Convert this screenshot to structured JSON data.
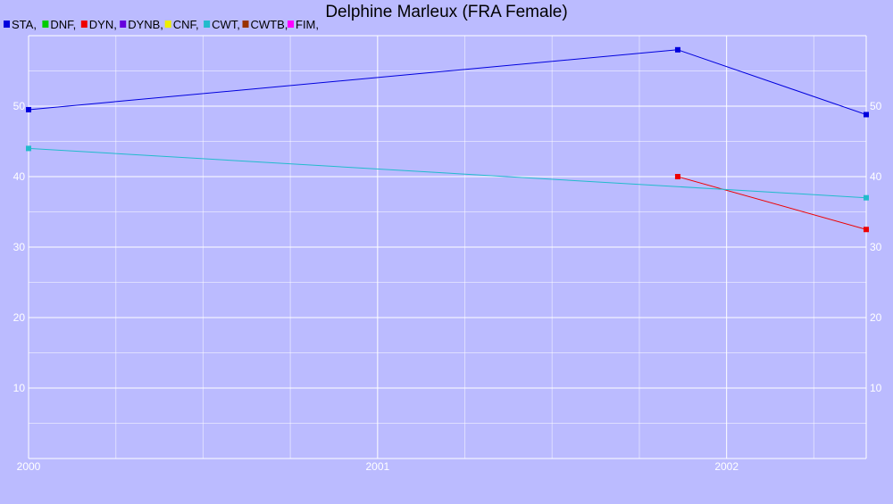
{
  "chart_data": {
    "type": "line",
    "title": "Delphine Marleux (FRA Female)",
    "xlabel": "",
    "ylabel": "",
    "xlim": [
      2000.0,
      2002.4
    ],
    "ylim": [
      0,
      60
    ],
    "x_ticks": [
      "2000",
      "2001",
      "2002"
    ],
    "y_ticks": [
      "10",
      "20",
      "30",
      "40",
      "50"
    ],
    "grid": true,
    "legend_position": "top-left",
    "legend": [
      {
        "label": "STA,",
        "color": "#0000dd"
      },
      {
        "label": "DNF,",
        "color": "#00cc00"
      },
      {
        "label": "DYN,",
        "color": "#ee0000"
      },
      {
        "label": "DYNB,",
        "color": "#6600dd"
      },
      {
        "label": "CNF,",
        "color": "#eeee00"
      },
      {
        "label": "CWT,",
        "color": "#22bbcc"
      },
      {
        "label": "CWTB,",
        "color": "#993300"
      },
      {
        "label": "FIM,",
        "color": "#ff00ff"
      }
    ],
    "series": [
      {
        "name": "STA",
        "color": "#0000dd",
        "points": [
          [
            2000.0,
            49.5
          ],
          [
            2001.86,
            58.0
          ],
          [
            2002.4,
            48.8
          ]
        ]
      },
      {
        "name": "DYN",
        "color": "#ee0000",
        "points": [
          [
            2001.86,
            40.0
          ],
          [
            2002.4,
            32.5
          ]
        ]
      },
      {
        "name": "CWT",
        "color": "#22bbcc",
        "points": [
          [
            2000.0,
            44.0
          ],
          [
            2002.4,
            37.0
          ]
        ]
      }
    ]
  }
}
